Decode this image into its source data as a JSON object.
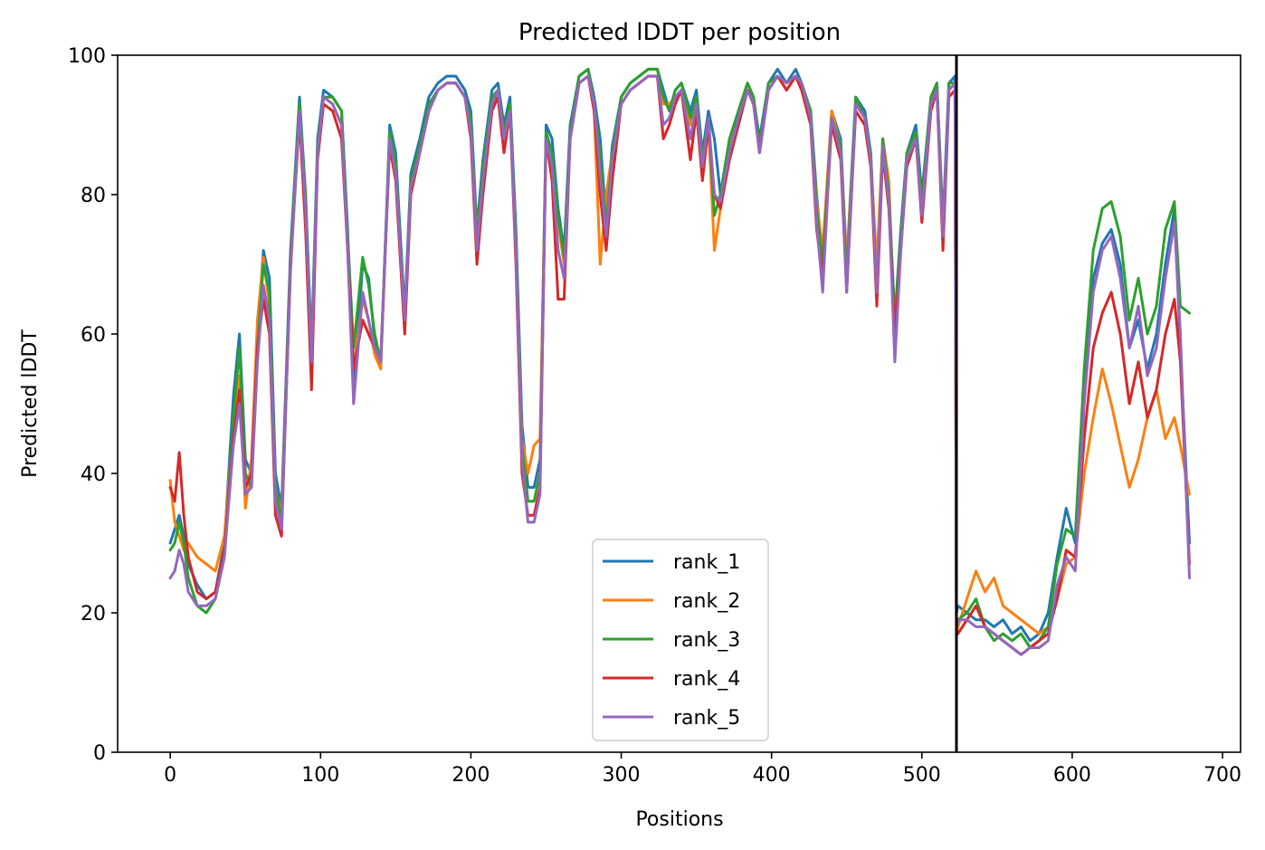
{
  "chart_data": {
    "type": "line",
    "title": "Predicted lDDT per position",
    "xlabel": "Positions",
    "ylabel": "Predicted lDDT",
    "xlim": [
      -35,
      712
    ],
    "ylim": [
      0,
      100
    ],
    "xticks": [
      0,
      100,
      200,
      300,
      400,
      500,
      600,
      700
    ],
    "yticks": [
      0,
      20,
      40,
      60,
      80,
      100
    ],
    "grid": false,
    "legend_position": "lower center",
    "chain_break": 523,
    "x": [
      0,
      3,
      6,
      9,
      12,
      18,
      24,
      30,
      36,
      42,
      46,
      50,
      54,
      58,
      62,
      66,
      70,
      74,
      80,
      86,
      90,
      94,
      98,
      102,
      108,
      114,
      118,
      122,
      128,
      132,
      136,
      140,
      146,
      150,
      156,
      160,
      166,
      172,
      178,
      184,
      190,
      196,
      200,
      204,
      208,
      214,
      218,
      222,
      226,
      230,
      234,
      238,
      242,
      246,
      250,
      254,
      258,
      262,
      266,
      272,
      278,
      282,
      286,
      290,
      294,
      300,
      306,
      312,
      318,
      324,
      328,
      332,
      336,
      340,
      346,
      350,
      354,
      358,
      362,
      366,
      372,
      378,
      384,
      388,
      392,
      398,
      404,
      410,
      416,
      420,
      426,
      430,
      434,
      440,
      446,
      450,
      456,
      462,
      466,
      470,
      474,
      478,
      482,
      486,
      490,
      496,
      500,
      506,
      510,
      514,
      518,
      522,
      523,
      524,
      530,
      536,
      542,
      548,
      554,
      560,
      566,
      572,
      578,
      584,
      590,
      596,
      602,
      608,
      614,
      620,
      626,
      632,
      638,
      644,
      650,
      656,
      662,
      668,
      672,
      678
    ],
    "series": [
      {
        "name": "rank_1",
        "color": "#1f77b4",
        "values": [
          30,
          32,
          34,
          31,
          27,
          24,
          22,
          23,
          30,
          51,
          60,
          42,
          40,
          60,
          72,
          68,
          40,
          35,
          72,
          94,
          80,
          58,
          88,
          95,
          94,
          92,
          75,
          52,
          70,
          68,
          59,
          55,
          90,
          86,
          63,
          83,
          88,
          94,
          96,
          97,
          97,
          95,
          92,
          75,
          85,
          95,
          96,
          90,
          94,
          75,
          47,
          38,
          38,
          42,
          90,
          88,
          78,
          72,
          90,
          97,
          98,
          94,
          88,
          76,
          87,
          94,
          96,
          97,
          98,
          98,
          95,
          92,
          95,
          96,
          92,
          95,
          86,
          92,
          88,
          80,
          88,
          92,
          96,
          94,
          88,
          96,
          98,
          96,
          98,
          96,
          92,
          80,
          70,
          92,
          88,
          70,
          94,
          92,
          86,
          68,
          88,
          80,
          62,
          75,
          86,
          90,
          80,
          94,
          96,
          76,
          96,
          97,
          20,
          21,
          20,
          19,
          19,
          18,
          19,
          17,
          18,
          16,
          17,
          20,
          28,
          35,
          30,
          52,
          68,
          73,
          75,
          70,
          58,
          62,
          55,
          60,
          70,
          78,
          58,
          30
        ]
      },
      {
        "name": "rank_2",
        "color": "#ff7f0e",
        "values": [
          39,
          33,
          31,
          29,
          30,
          28,
          27,
          26,
          31,
          47,
          54,
          35,
          42,
          62,
          71,
          64,
          38,
          34,
          70,
          92,
          78,
          55,
          86,
          94,
          93,
          90,
          73,
          55,
          65,
          62,
          57,
          55,
          88,
          84,
          62,
          80,
          86,
          92,
          95,
          96,
          96,
          94,
          90,
          74,
          83,
          93,
          95,
          89,
          92,
          73,
          45,
          40,
          44,
          45,
          88,
          84,
          76,
          70,
          88,
          96,
          97,
          92,
          70,
          80,
          86,
          93,
          95,
          96,
          97,
          97,
          93,
          93,
          94,
          95,
          90,
          94,
          85,
          90,
          72,
          78,
          87,
          92,
          96,
          94,
          87,
          95,
          97,
          95,
          97,
          95,
          91,
          79,
          72,
          92,
          87,
          70,
          93,
          91,
          85,
          70,
          88,
          82,
          60,
          73,
          85,
          88,
          78,
          93,
          95,
          75,
          95,
          96,
          17,
          18,
          22,
          26,
          23,
          25,
          21,
          20,
          19,
          18,
          17,
          18,
          22,
          27,
          28,
          40,
          48,
          55,
          50,
          44,
          38,
          42,
          48,
          52,
          45,
          48,
          44,
          37
        ]
      },
      {
        "name": "rank_3",
        "color": "#2ca02c",
        "values": [
          29,
          30,
          33,
          30,
          25,
          21,
          20,
          22,
          28,
          48,
          58,
          40,
          38,
          58,
          70,
          66,
          38,
          33,
          71,
          93,
          80,
          57,
          87,
          94,
          94,
          92,
          74,
          58,
          71,
          67,
          60,
          56,
          89,
          85,
          62,
          82,
          87,
          93,
          95,
          96,
          96,
          94,
          91,
          73,
          84,
          94,
          95,
          89,
          93,
          74,
          44,
          36,
          36,
          40,
          89,
          86,
          77,
          71,
          89,
          97,
          98,
          93,
          86,
          75,
          86,
          94,
          96,
          97,
          98,
          98,
          94,
          92,
          95,
          96,
          91,
          94,
          85,
          91,
          77,
          80,
          88,
          92,
          96,
          94,
          87,
          96,
          97,
          96,
          97,
          96,
          92,
          78,
          70,
          91,
          87,
          68,
          94,
          91,
          86,
          65,
          88,
          80,
          62,
          74,
          86,
          89,
          79,
          94,
          96,
          75,
          96,
          96,
          18,
          19,
          20,
          22,
          18,
          16,
          17,
          16,
          17,
          15,
          16,
          18,
          27,
          32,
          31,
          55,
          72,
          78,
          79,
          74,
          62,
          68,
          60,
          64,
          75,
          79,
          64,
          63
        ]
      },
      {
        "name": "rank_4",
        "color": "#d62728",
        "values": [
          38,
          36,
          43,
          34,
          28,
          23,
          22,
          23,
          29,
          45,
          52,
          38,
          40,
          58,
          65,
          60,
          34,
          31,
          70,
          91,
          75,
          52,
          85,
          93,
          92,
          88,
          72,
          55,
          62,
          60,
          58,
          56,
          87,
          82,
          60,
          80,
          86,
          92,
          95,
          96,
          96,
          94,
          88,
          70,
          80,
          92,
          94,
          86,
          92,
          70,
          40,
          34,
          34,
          38,
          88,
          82,
          65,
          65,
          88,
          96,
          97,
          92,
          80,
          72,
          82,
          93,
          95,
          96,
          97,
          97,
          88,
          90,
          93,
          95,
          85,
          92,
          82,
          90,
          80,
          78,
          85,
          90,
          95,
          93,
          86,
          95,
          97,
          95,
          97,
          95,
          90,
          75,
          68,
          90,
          85,
          66,
          92,
          90,
          84,
          64,
          86,
          78,
          60,
          72,
          84,
          88,
          76,
          92,
          95,
          72,
          94,
          95,
          17,
          17,
          19,
          21,
          18,
          17,
          16,
          15,
          14,
          15,
          16,
          17,
          22,
          29,
          28,
          45,
          58,
          63,
          66,
          60,
          50,
          56,
          48,
          52,
          60,
          65,
          56,
          27
        ]
      },
      {
        "name": "rank_5",
        "color": "#9467bd",
        "values": [
          25,
          26,
          29,
          27,
          23,
          21,
          21,
          22,
          28,
          44,
          50,
          37,
          38,
          56,
          67,
          62,
          36,
          32,
          69,
          92,
          78,
          56,
          86,
          94,
          93,
          90,
          72,
          50,
          66,
          62,
          58,
          56,
          88,
          83,
          62,
          81,
          86,
          92,
          95,
          96,
          96,
          94,
          89,
          72,
          82,
          93,
          95,
          88,
          92,
          72,
          42,
          33,
          33,
          37,
          88,
          84,
          72,
          68,
          88,
          96,
          97,
          93,
          83,
          74,
          85,
          93,
          95,
          96,
          97,
          97,
          90,
          91,
          94,
          95,
          88,
          93,
          84,
          91,
          80,
          79,
          86,
          91,
          95,
          93,
          86,
          95,
          97,
          96,
          97,
          96,
          91,
          76,
          66,
          91,
          86,
          66,
          93,
          91,
          85,
          66,
          87,
          79,
          56,
          72,
          85,
          88,
          77,
          93,
          95,
          74,
          95,
          96,
          18,
          19,
          19,
          18,
          18,
          17,
          16,
          15,
          14,
          15,
          15,
          16,
          24,
          28,
          26,
          50,
          66,
          72,
          74,
          68,
          58,
          64,
          54,
          58,
          68,
          76,
          60,
          25
        ]
      }
    ]
  }
}
